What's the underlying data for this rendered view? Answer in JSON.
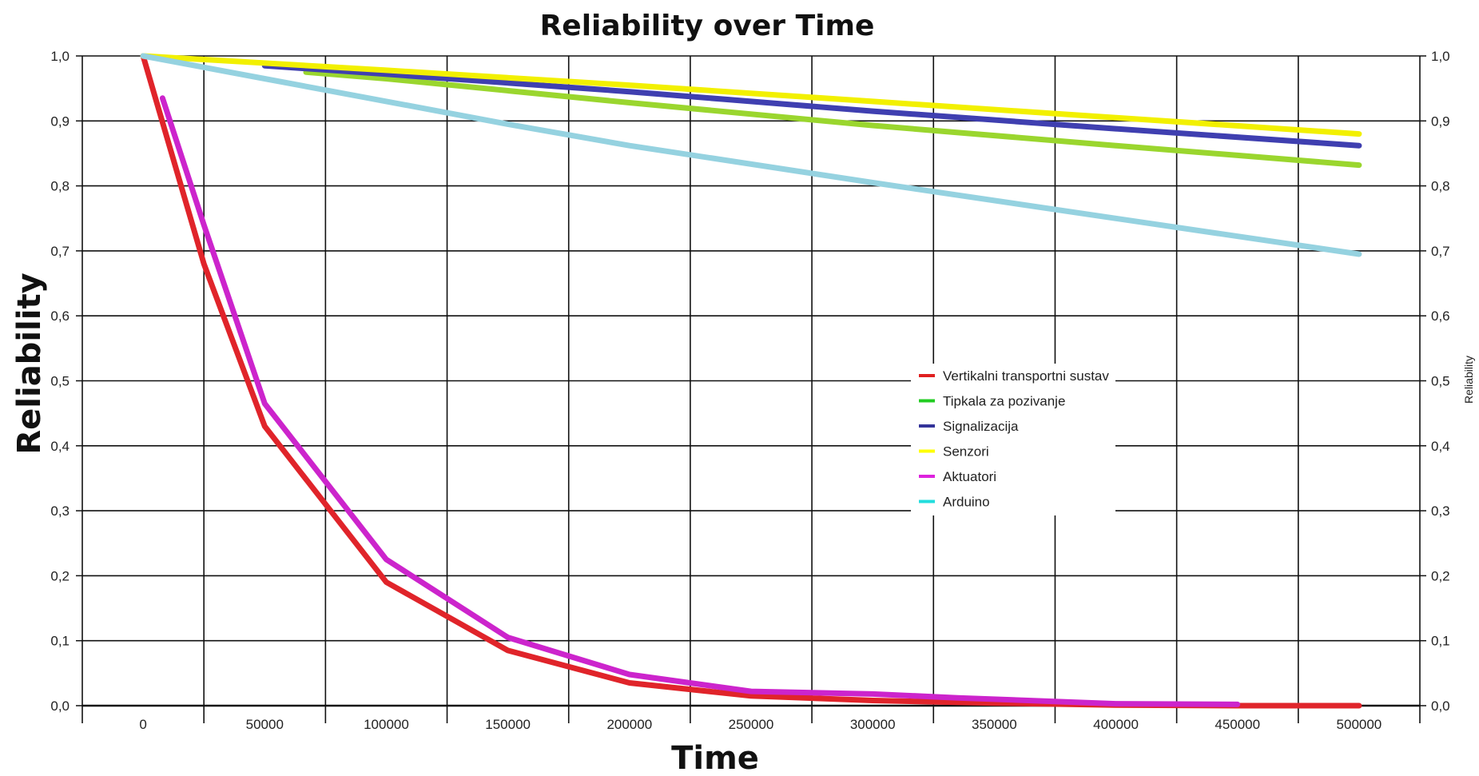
{
  "chart_data": {
    "type": "line",
    "title": "Reliability over Time",
    "xlabel": "Time",
    "ylabel": "Reliability",
    "y2label": "Reliability",
    "xlim": [
      -25000,
      525000
    ],
    "ylim": [
      0,
      1
    ],
    "xticks": [
      "0",
      "50000",
      "100000",
      "150000",
      "200000",
      "250000",
      "300000",
      "350000",
      "400000",
      "450000",
      "500000"
    ],
    "yticks": [
      "0,0",
      "0,1",
      "0,2",
      "0,3",
      "0,4",
      "0,5",
      "0,6",
      "0,7",
      "0,8",
      "0,9",
      "1,0"
    ],
    "grid": true,
    "legend_position": "center-right",
    "series": [
      {
        "name": "Vertikalni transportni sustav",
        "legend_color": "#e02020",
        "color": "#e0242a",
        "points": [
          [
            0,
            1.0
          ],
          [
            25000,
            0.68
          ],
          [
            50000,
            0.43
          ],
          [
            100000,
            0.19
          ],
          [
            150000,
            0.085
          ],
          [
            200000,
            0.035
          ],
          [
            250000,
            0.015
          ],
          [
            300000,
            0.008
          ],
          [
            350000,
            0.004
          ],
          [
            400000,
            0.001
          ],
          [
            450000,
            0.0
          ],
          [
            500000,
            0.0
          ]
        ]
      },
      {
        "name": "Tipkala za pozivanje",
        "legend_color": "#22cc22",
        "color": "#9ad62e",
        "points": [
          [
            67000,
            0.975
          ],
          [
            100000,
            0.965
          ],
          [
            200000,
            0.928
          ],
          [
            300000,
            0.893
          ],
          [
            400000,
            0.862
          ],
          [
            500000,
            0.832
          ]
        ]
      },
      {
        "name": "Signalizacija",
        "legend_color": "#333399",
        "color": "#3f3fb0",
        "points": [
          [
            50000,
            0.985
          ],
          [
            100000,
            0.972
          ],
          [
            200000,
            0.945
          ],
          [
            300000,
            0.915
          ],
          [
            400000,
            0.888
          ],
          [
            500000,
            0.862
          ]
        ]
      },
      {
        "name": "Senzori",
        "legend_color": "#ffff00",
        "color": "#f2f000",
        "points": [
          [
            0,
            1.0
          ],
          [
            100000,
            0.978
          ],
          [
            200000,
            0.955
          ],
          [
            300000,
            0.93
          ],
          [
            400000,
            0.905
          ],
          [
            500000,
            0.88
          ]
        ]
      },
      {
        "name": "Aktuatori",
        "legend_color": "#dd22dd",
        "color": "#cc24cc",
        "points": [
          [
            8000,
            0.935
          ],
          [
            25000,
            0.74
          ],
          [
            50000,
            0.465
          ],
          [
            100000,
            0.225
          ],
          [
            150000,
            0.105
          ],
          [
            200000,
            0.048
          ],
          [
            250000,
            0.022
          ],
          [
            300000,
            0.018
          ],
          [
            335000,
            0.012
          ],
          [
            400000,
            0.003
          ],
          [
            450000,
            0.002
          ]
        ]
      },
      {
        "name": "Arduino",
        "legend_color": "#22dddd",
        "color": "#95d2e0",
        "points": [
          [
            0,
            1.0
          ],
          [
            50000,
            0.965
          ],
          [
            100000,
            0.93
          ],
          [
            150000,
            0.895
          ],
          [
            200000,
            0.862
          ],
          [
            300000,
            0.805
          ],
          [
            400000,
            0.75
          ],
          [
            500000,
            0.695
          ]
        ]
      }
    ]
  }
}
